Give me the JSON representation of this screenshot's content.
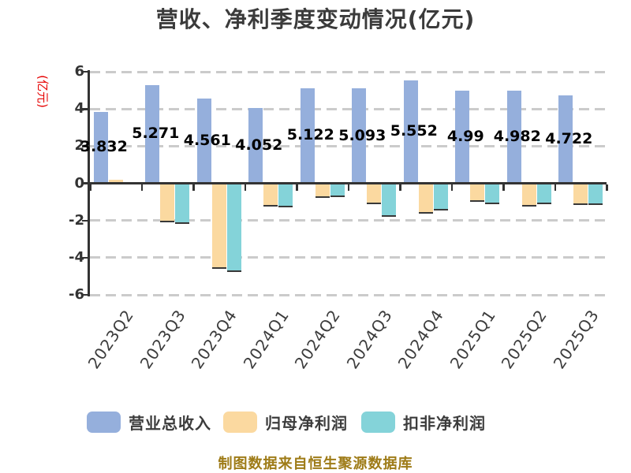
{
  "title": "营收、净利季度变动情况(亿元)",
  "y_axis_unit": "(亿元)",
  "footer_note": "制图数据来自恒生聚源数据库",
  "colors": {
    "revenue_bar": "#95AFDC",
    "net_profit_bar": "#FBD9A0",
    "ex_nonrecurring_bar": "#84D3D9",
    "axis": "#333333",
    "grid": "#CBCBCB",
    "title_text": "#3B3B3B",
    "tick_text": "#333333",
    "value_label_text": "#000000",
    "y_unit_text": "#E60000",
    "footer_text": "#9E7B17",
    "background": "#FFFFFF"
  },
  "chart_data": {
    "type": "bar",
    "title": "营收、净利季度变动情况(亿元)",
    "ylabel": "(亿元)",
    "xlabel": "",
    "ylim": [
      -6,
      6
    ],
    "yticks": [
      6,
      4,
      2,
      0,
      -2,
      -4,
      -6
    ],
    "grid": "horizontal-dashed",
    "legend_position": "bottom",
    "categories": [
      "2023Q2",
      "2023Q3",
      "2023Q4",
      "2024Q1",
      "2024Q2",
      "2024Q3",
      "2024Q4",
      "2025Q1",
      "2025Q2",
      "2025Q3"
    ],
    "series": [
      {
        "key": "revenue",
        "name": "营业总收入",
        "color": "#95AFDC",
        "values": [
          3.832,
          5.271,
          4.561,
          4.052,
          5.122,
          5.093,
          5.552,
          4.99,
          4.982,
          4.722
        ],
        "value_labels": [
          "3.832",
          "5.271",
          "4.561",
          "4.052",
          "5.122",
          "5.093",
          "5.552",
          "4.99",
          "4.982",
          "4.722"
        ],
        "labels_visible": true
      },
      {
        "key": "net-profit",
        "name": "归母净利润",
        "color": "#FBD9A0",
        "values": [
          0.18,
          -2.09,
          -4.59,
          -1.24,
          -0.78,
          -1.14,
          -1.61,
          -1.0,
          -1.27,
          -1.15
        ],
        "labels_visible": false
      },
      {
        "key": "ex-nonrecurring-profit",
        "name": "扣非净利润",
        "color": "#84D3D9",
        "values": [
          0.04,
          -2.19,
          -4.78,
          -1.3,
          -0.75,
          -1.78,
          -1.47,
          -1.12,
          -1.14,
          -1.15
        ],
        "labels_visible": false
      }
    ]
  }
}
